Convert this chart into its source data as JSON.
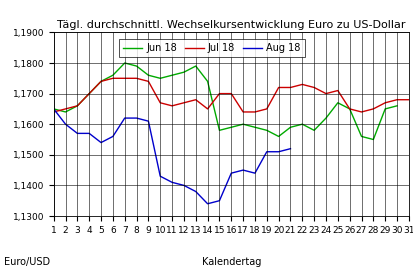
{
  "title": "Tägl. durchschnittl. Wechselkursentwicklung Euro zu US-Dollar",
  "xlabel": "Kalendertag",
  "ylabel": "Euro/USD",
  "ylim": [
    1.13,
    1.19
  ],
  "yticks": [
    1.13,
    1.14,
    1.15,
    1.16,
    1.17,
    1.18,
    1.19
  ],
  "ytick_labels": [
    "1,1300",
    "1,1400",
    "1,1500",
    "1,1600",
    "1,1700",
    "1,1800",
    "1,1900"
  ],
  "days": [
    1,
    2,
    3,
    4,
    5,
    6,
    7,
    8,
    9,
    10,
    11,
    12,
    13,
    14,
    15,
    16,
    17,
    18,
    19,
    20,
    21,
    22,
    23,
    24,
    25,
    26,
    27,
    28,
    29,
    30,
    31
  ],
  "jun18": [
    1.165,
    1.164,
    1.166,
    1.17,
    1.174,
    1.176,
    1.18,
    1.179,
    1.176,
    1.175,
    1.176,
    1.177,
    1.179,
    1.174,
    1.158,
    1.159,
    1.16,
    1.159,
    1.158,
    1.156,
    1.159,
    1.16,
    1.158,
    1.162,
    1.167,
    1.165,
    1.156,
    1.155,
    1.165,
    1.166
  ],
  "jul18": [
    1.164,
    1.165,
    1.166,
    1.17,
    1.174,
    1.175,
    1.175,
    1.175,
    1.174,
    1.167,
    1.166,
    1.167,
    1.168,
    1.165,
    1.17,
    1.17,
    1.164,
    1.164,
    1.165,
    1.172,
    1.172,
    1.173,
    1.172,
    1.17,
    1.171,
    1.165,
    1.164,
    1.165,
    1.167,
    1.168,
    1.168
  ],
  "aug18": [
    1.165,
    1.16,
    1.157,
    1.157,
    1.154,
    1.156,
    1.162,
    1.162,
    1.161,
    1.143,
    1.141,
    1.14,
    1.138,
    1.134,
    1.135,
    1.144,
    1.145,
    1.144,
    1.151,
    1.151,
    1.152,
    null,
    null,
    null,
    null,
    null,
    null,
    null,
    null,
    null,
    null
  ],
  "color_jun": "#00aa00",
  "color_jul": "#cc0000",
  "color_aug": "#0000cc",
  "background_color": "#ffffff",
  "grid_color": "#000000",
  "title_fontsize": 8,
  "label_fontsize": 7,
  "tick_fontsize": 6.5,
  "legend_fontsize": 7
}
